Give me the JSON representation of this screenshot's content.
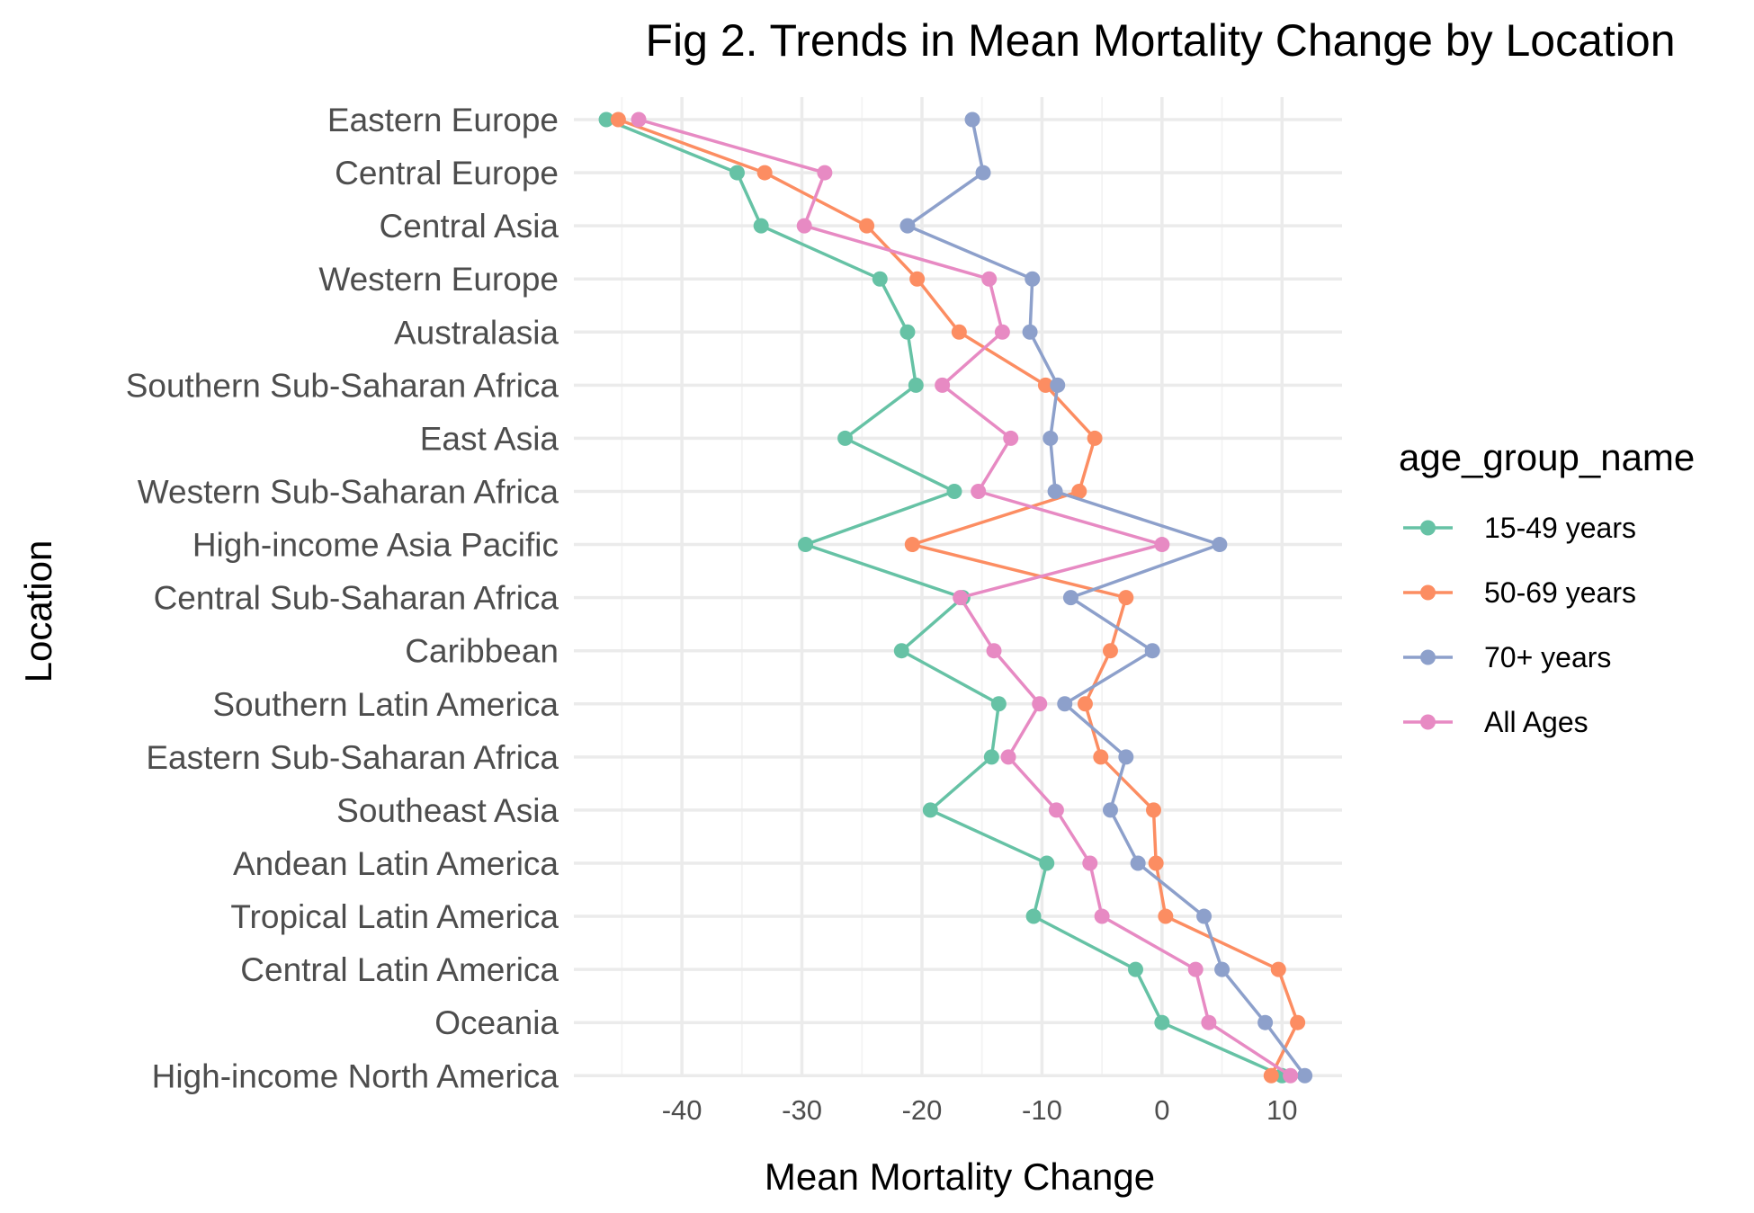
{
  "chart_data": {
    "type": "line",
    "title": "Fig 2. Trends in Mean Mortality Change by Location",
    "xlabel": "Mean Mortality Change",
    "ylabel": "Location",
    "xlim": [
      -49,
      15
    ],
    "xticks": [
      "-40",
      "-30",
      "-20",
      "-10",
      "0",
      "10"
    ],
    "xtick_values": [
      -40,
      -30,
      -20,
      -10,
      0,
      10
    ],
    "grid": true,
    "legend_title": "age_group_name",
    "legend_position": "right",
    "categories": [
      "Eastern Europe",
      "Central Europe",
      "Central Asia",
      "Western Europe",
      "Australasia",
      "Southern Sub-Saharan Africa",
      "East Asia",
      "Western Sub-Saharan Africa",
      "High-income Asia Pacific",
      "Central Sub-Saharan Africa",
      "Caribbean",
      "Southern Latin America",
      "Eastern Sub-Saharan Africa",
      "Southeast Asia",
      "Andean Latin America",
      "Tropical Latin America",
      "Central Latin America",
      "Oceania",
      "High-income North America"
    ],
    "series": [
      {
        "name": "15-49 years",
        "color": "#66c2a5",
        "values": [
          -46.3,
          -35.4,
          -33.4,
          -23.5,
          -21.2,
          -20.5,
          -26.4,
          -17.3,
          -29.7,
          -16.6,
          -21.7,
          -13.6,
          -14.2,
          -19.3,
          -9.6,
          -10.7,
          -2.2,
          0.0,
          10.0
        ]
      },
      {
        "name": "50-69 years",
        "color": "#fc8d62",
        "values": [
          -45.3,
          -33.1,
          -24.6,
          -20.4,
          -16.9,
          -9.7,
          -5.6,
          -6.9,
          -20.8,
          -3.0,
          -4.3,
          -6.4,
          -5.1,
          -0.7,
          -0.5,
          0.3,
          9.7,
          11.3,
          9.1
        ]
      },
      {
        "name": "70+ years",
        "color": "#8da0cb",
        "values": [
          -15.8,
          -14.9,
          -21.2,
          -10.8,
          -11.0,
          -8.7,
          -9.3,
          -8.9,
          4.8,
          -7.6,
          -0.8,
          -8.1,
          -3.0,
          -4.3,
          -2.0,
          3.5,
          5.0,
          8.6,
          11.9
        ]
      },
      {
        "name": "All Ages",
        "color": "#e78ac3",
        "values": [
          -43.6,
          -28.1,
          -29.8,
          -14.4,
          -13.3,
          -18.3,
          -12.6,
          -15.3,
          0.0,
          -16.8,
          -14.0,
          -10.2,
          -12.8,
          -8.8,
          -6.0,
          -5.0,
          2.8,
          3.9,
          10.7
        ]
      }
    ]
  }
}
